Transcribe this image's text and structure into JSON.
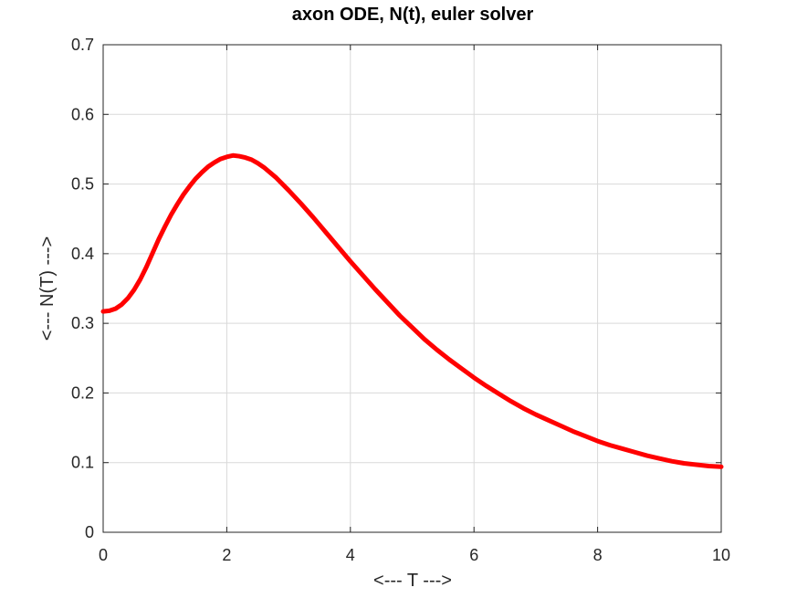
{
  "chart_data": {
    "type": "line",
    "title": "axon ODE, N(t), euler solver",
    "xlabel": "<--- T --->",
    "ylabel": "<--- N(T) --->",
    "xlim": [
      0,
      10
    ],
    "ylim": [
      0,
      0.7
    ],
    "xticks": [
      0,
      2,
      4,
      6,
      8,
      10
    ],
    "yticks": [
      0,
      0.1,
      0.2,
      0.3,
      0.4,
      0.5,
      0.6,
      0.7
    ],
    "xtick_labels": [
      "0",
      "2",
      "4",
      "6",
      "8",
      "10"
    ],
    "ytick_labels": [
      "0",
      "0.1",
      "0.2",
      "0.3",
      "0.4",
      "0.5",
      "0.6",
      "0.7"
    ],
    "grid": true,
    "series": [
      {
        "color": "#ff0000",
        "x": [
          0,
          0.1,
          0.2,
          0.3,
          0.4,
          0.5,
          0.6,
          0.7,
          0.8,
          0.9,
          1.0,
          1.1,
          1.2,
          1.3,
          1.4,
          1.5,
          1.6,
          1.7,
          1.8,
          1.9,
          2.0,
          2.1,
          2.2,
          2.3,
          2.4,
          2.5,
          2.6,
          2.8,
          3.0,
          3.2,
          3.4,
          3.6,
          3.8,
          4.0,
          4.2,
          4.4,
          4.6,
          4.8,
          5.0,
          5.2,
          5.4,
          5.6,
          5.8,
          6.0,
          6.2,
          6.4,
          6.6,
          6.8,
          7.0,
          7.2,
          7.4,
          7.6,
          7.8,
          8.0,
          8.2,
          8.4,
          8.6,
          8.8,
          9.0,
          9.2,
          9.4,
          9.6,
          9.8,
          10.0
        ],
        "y": [
          0.317,
          0.318,
          0.321,
          0.327,
          0.336,
          0.348,
          0.363,
          0.381,
          0.401,
          0.421,
          0.439,
          0.456,
          0.471,
          0.485,
          0.497,
          0.508,
          0.517,
          0.525,
          0.531,
          0.536,
          0.539,
          0.541,
          0.54,
          0.538,
          0.535,
          0.53,
          0.524,
          0.509,
          0.491,
          0.472,
          0.452,
          0.431,
          0.41,
          0.389,
          0.369,
          0.349,
          0.33,
          0.311,
          0.294,
          0.277,
          0.262,
          0.248,
          0.235,
          0.222,
          0.21,
          0.199,
          0.188,
          0.178,
          0.169,
          0.161,
          0.153,
          0.145,
          0.138,
          0.131,
          0.125,
          0.12,
          0.115,
          0.11,
          0.106,
          0.102,
          0.099,
          0.097,
          0.095,
          0.094
        ]
      }
    ]
  }
}
